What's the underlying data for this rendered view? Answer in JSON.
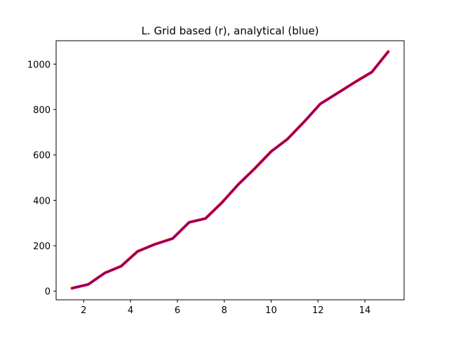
{
  "chart_data": {
    "type": "line",
    "title": "L. Grid based (r), analytical (blue)",
    "xlabel": "",
    "ylabel": "",
    "xlim": [
      0.825,
      15.675
    ],
    "ylim": [
      -38,
      1103
    ],
    "grid": false,
    "x_ticks": [
      2,
      4,
      6,
      8,
      10,
      12,
      14
    ],
    "y_ticks": [
      0,
      200,
      400,
      600,
      800,
      1000
    ],
    "x": [
      1.5,
      2.2,
      2.9,
      3.6,
      4.3,
      5.0,
      5.8,
      6.5,
      7.2,
      7.9,
      8.6,
      9.3,
      10.0,
      10.7,
      11.4,
      12.1,
      12.8,
      13.6,
      14.3,
      15.0
    ],
    "series": [
      {
        "color": "#ff0000",
        "values": [
          13,
          30,
          80,
          110,
          175,
          205,
          232,
          303,
          320,
          390,
          470,
          540,
          615,
          670,
          745,
          825,
          870,
          922,
          965,
          1055
        ]
      },
      {
        "color": "#0000ff",
        "values": [
          13,
          30,
          80,
          110,
          175,
          205,
          232,
          303,
          320,
          390,
          470,
          540,
          615,
          670,
          745,
          825,
          870,
          922,
          965,
          1055
        ]
      }
    ]
  }
}
